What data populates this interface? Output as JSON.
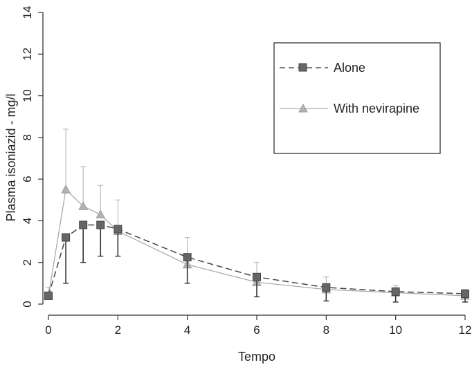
{
  "chart_data": {
    "type": "line",
    "title": "",
    "xlabel": "Tempo",
    "ylabel": "Plasma isoniazid - mg/l",
    "xlim": [
      0,
      12
    ],
    "ylim": [
      0,
      14
    ],
    "xticks": [
      0,
      2,
      4,
      6,
      8,
      10,
      12
    ],
    "yticks": [
      0,
      2,
      4,
      6,
      8,
      10,
      12,
      14
    ],
    "grid": false,
    "legend_position": "top-right",
    "series": [
      {
        "name": "Alone",
        "color": "#555555",
        "marker": "square",
        "line_style": "dashed",
        "x": [
          0,
          0.5,
          1,
          1.5,
          2,
          4,
          6,
          8,
          10,
          12
        ],
        "y": [
          0.4,
          3.2,
          3.8,
          3.8,
          3.6,
          2.25,
          1.3,
          0.8,
          0.6,
          0.5
        ],
        "error_low": [
          0.4,
          1.0,
          2.0,
          2.3,
          2.3,
          1.0,
          0.35,
          0.15,
          0.1,
          0.1
        ]
      },
      {
        "name": "With nevirapine",
        "color": "#aaaaaa",
        "marker": "triangle",
        "line_style": "solid",
        "x": [
          0,
          0.5,
          1,
          1.5,
          2,
          4,
          6,
          8,
          10,
          12
        ],
        "y": [
          0.4,
          5.5,
          4.7,
          4.3,
          3.5,
          1.9,
          1.05,
          0.7,
          0.55,
          0.4
        ],
        "error_high": [
          0.8,
          8.4,
          6.6,
          5.7,
          5.0,
          3.2,
          2.0,
          1.3,
          0.9,
          0.7
        ]
      }
    ]
  }
}
